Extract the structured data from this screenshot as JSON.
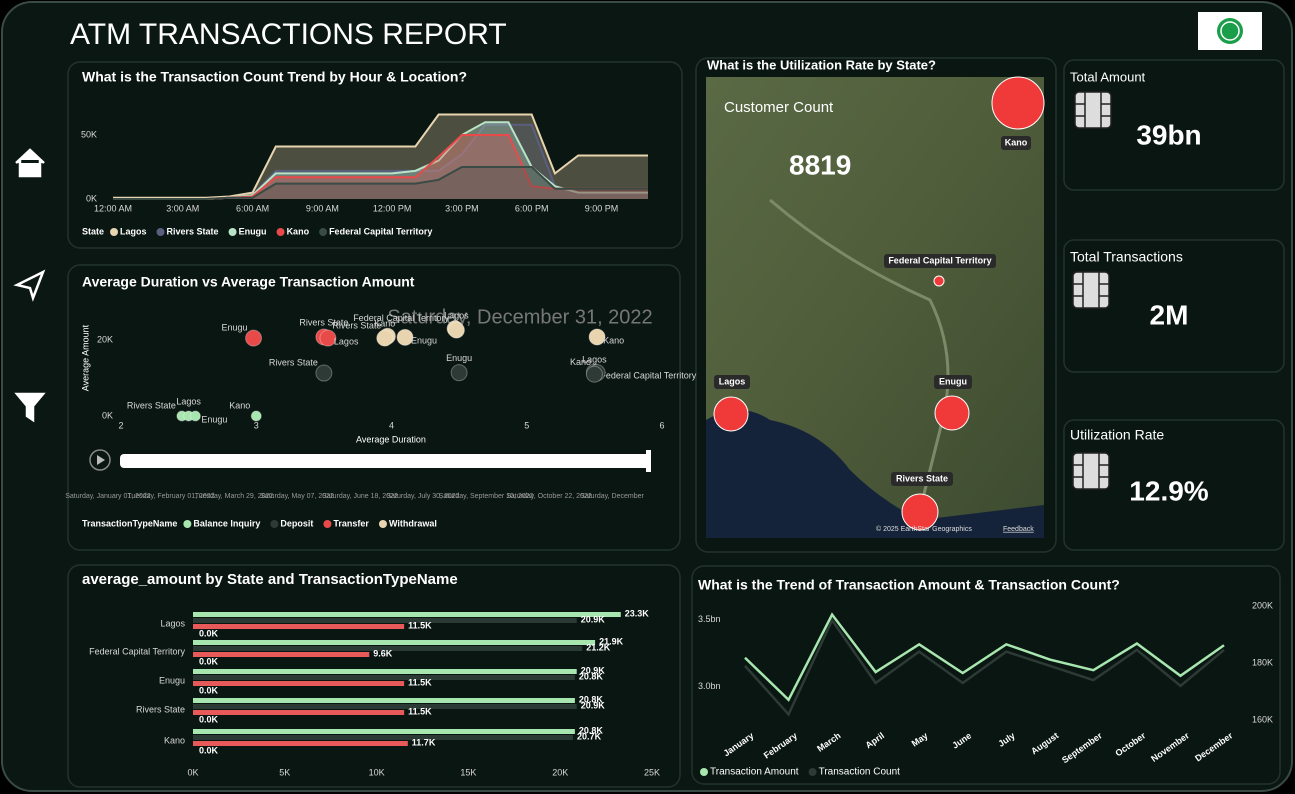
{
  "header": {
    "title": "ATM TRANSACTIONS REPORT"
  },
  "chart_data": [
    {
      "type": "area",
      "title": "What is the Transaction Count Trend by Hour & Location?",
      "categories": [
        "12:00 AM",
        null,
        null,
        "3:00 AM",
        null,
        null,
        "6:00 AM",
        null,
        null,
        "9:00 AM",
        null,
        null,
        "12:00 PM",
        null,
        null,
        "3:00 PM",
        null,
        null,
        "6:00 PM",
        null,
        null,
        "9:00 PM",
        null,
        null
      ],
      "ylim": [
        0,
        70000
      ],
      "yticks": [
        {
          "value": 0,
          "label": "0K"
        },
        {
          "value": 50000,
          "label": "50K"
        }
      ],
      "legend_title": "State",
      "series": [
        {
          "name": "Lagos",
          "color": "#e8d5b0",
          "values": [
            1000,
            1000,
            1000,
            1000,
            1000,
            2000,
            5000,
            41000,
            41000,
            41000,
            41000,
            41000,
            41000,
            41000,
            66000,
            66000,
            66000,
            66000,
            66000,
            20000,
            34000,
            34000,
            34000,
            34000
          ]
        },
        {
          "name": "Rivers State",
          "color": "#5a5f80",
          "values": [
            0,
            0,
            0,
            0,
            0,
            1000,
            3000,
            22000,
            22000,
            22000,
            22000,
            22000,
            22000,
            22000,
            22000,
            35000,
            58000,
            58000,
            58000,
            10000,
            5000,
            5000,
            5000,
            5000
          ]
        },
        {
          "name": "Enugu",
          "color": "#b7e4c7",
          "values": [
            0,
            0,
            0,
            0,
            0,
            1000,
            3000,
            20000,
            20000,
            20000,
            20000,
            20000,
            20000,
            22000,
            30000,
            50000,
            60000,
            60000,
            25000,
            10000,
            5000,
            5000,
            5000,
            5000
          ]
        },
        {
          "name": "Kano",
          "color": "#e84a4a",
          "values": [
            0,
            0,
            0,
            0,
            0,
            1000,
            2000,
            17000,
            17000,
            17000,
            17000,
            17000,
            17000,
            17000,
            33000,
            50000,
            50000,
            50000,
            10000,
            8000,
            8000,
            8000,
            8000,
            8000
          ]
        },
        {
          "name": "Federal Capital Territory",
          "color": "#3a4a44",
          "values": [
            0,
            0,
            0,
            0,
            0,
            1000,
            1000,
            12000,
            12000,
            12000,
            12000,
            12000,
            12000,
            12000,
            15000,
            25000,
            25000,
            25000,
            25000,
            8000,
            8000,
            8000,
            8000,
            8000
          ]
        }
      ]
    },
    {
      "type": "scatter",
      "title": "Average Duration vs Average Transaction Amount",
      "x_label": "Average Duration",
      "y_label": "Average Amount",
      "play_label": "Saturday, December 31, 2022",
      "xlim": [
        2,
        6
      ],
      "xticks": [
        2,
        3,
        4,
        5,
        6
      ],
      "ylim": [
        0,
        28000
      ],
      "yticks": [
        {
          "value": 0,
          "label": "0K"
        },
        {
          "value": 20000,
          "label": "20K"
        }
      ],
      "timeline_labels": [
        "Saturday, January 01, 2022",
        "Tuesday, February 01, 2022",
        "Tuesday, March 29, 2022",
        "Saturday, May 07, 2022",
        "Saturday, June 18, 2022",
        "Saturday, July 30, 2022",
        "Saturday, September 10, 2022",
        "Saturday, October 22, 2022",
        "Saturday, December"
      ],
      "legend_title": "TransactionTypeName",
      "series": [
        {
          "name": "Balance Inquiry",
          "color": "#a8e6b0",
          "x": [
            2.45,
            2.5,
            2.55,
            3.0
          ],
          "values": [
            0,
            0,
            0,
            0
          ],
          "labels": [
            "Rivers State",
            "Lagos",
            "Enugu",
            "Kano"
          ]
        },
        {
          "name": "Deposit",
          "color": "#2e3a36",
          "x": [
            3.5,
            4.5,
            5.5,
            5.52,
            5.5
          ],
          "values": [
            11300,
            11400,
            11500,
            11400,
            11000
          ],
          "labels": [
            "Rivers State",
            "Enugu",
            "Federal Capital Territory",
            "Kano",
            "Lagos"
          ]
        },
        {
          "name": "Transfer",
          "color": "#e84a4a",
          "x": [
            2.98,
            3.5,
            3.53
          ],
          "values": [
            20500,
            20800,
            20500
          ],
          "labels": [
            "Enugu",
            "Rivers State",
            "Lagos"
          ]
        },
        {
          "name": "Withdrawal",
          "color": "#e8d5b0",
          "x": [
            3.97,
            3.95,
            4.1,
            4.47,
            4.48,
            5.52
          ],
          "values": [
            21000,
            20500,
            20700,
            23000,
            22600,
            20800
          ],
          "labels": [
            "Rivers State",
            "Kano",
            "Enugu",
            "Federal Capital Territory",
            "Lagos",
            "Kano"
          ]
        }
      ]
    },
    {
      "type": "hbar",
      "title": "average_amount by State and TransactionTypeName",
      "categories": [
        "Lagos",
        "Federal Capital Territory",
        "Enugu",
        "Rivers State",
        "Kano"
      ],
      "xlim": [
        0,
        25000
      ],
      "xticks": [
        {
          "value": 0,
          "label": "0K"
        },
        {
          "value": 5000,
          "label": "5K"
        },
        {
          "value": 10000,
          "label": "10K"
        },
        {
          "value": 15000,
          "label": "15K"
        },
        {
          "value": 20000,
          "label": "20K"
        },
        {
          "value": 25000,
          "label": "25K"
        }
      ],
      "series": [
        {
          "color": "#a8e6b0",
          "values": [
            23300,
            21900,
            20900,
            20800,
            20800
          ],
          "value_labels": [
            "23.3K",
            "21.9K",
            "20.9K",
            "20.8K",
            "20.8K"
          ]
        },
        {
          "color": "#2b3a35",
          "values": [
            20900,
            21200,
            20800,
            20900,
            20700
          ],
          "value_labels": [
            "20.9K",
            "21.2K",
            "20.8K",
            "20.9K",
            "20.7K"
          ]
        },
        {
          "color": "#e85a5a",
          "values": [
            11500,
            9600,
            11500,
            11500,
            11700
          ],
          "value_labels": [
            "11.5K",
            "9.6K",
            "11.5K",
            "11.5K",
            "11.7K"
          ]
        },
        {
          "color": "#a8e6b0",
          "values": [
            0,
            0,
            0,
            0,
            0
          ],
          "value_labels": [
            "0.0K",
            "0.0K",
            "0.0K",
            "0.0K",
            "0.0K"
          ]
        }
      ]
    },
    {
      "type": "line",
      "title": "What is the Trend of Transaction Amount & Transaction Count?",
      "categories": [
        "January",
        "February",
        "March",
        "April",
        "May",
        "June",
        "July",
        "August",
        "September",
        "October",
        "November",
        "December"
      ],
      "ylim": [
        2600000000,
        3600000000
      ],
      "yticks": [
        {
          "value": 3000000000,
          "label": "3.0bn"
        },
        {
          "value": 3500000000,
          "label": "3.5bn"
        }
      ],
      "y2lim": [
        153000,
        200000
      ],
      "y2ticks": [
        {
          "value": 160000,
          "label": "160K"
        },
        {
          "value": 180000,
          "label": "180K"
        },
        {
          "value": 200000,
          "label": "200K"
        }
      ],
      "series": [
        {
          "name": "Transaction Count",
          "color": "#2e3a36",
          "axis": "y2",
          "values": [
            179000,
            162000,
            195000,
            173000,
            184000,
            173000,
            184000,
            179000,
            174000,
            184600,
            172000,
            184600
          ]
        },
        {
          "name": "Transaction Amount",
          "color": "#a8e6b0",
          "values": [
            3214000000,
            2900000000,
            3536000000,
            3107000000,
            3314000000,
            3100000000,
            3314000000,
            3200000000,
            3121000000,
            3320000000,
            3079000000,
            3307000000
          ]
        }
      ]
    }
  ],
  "map": {
    "title": "What is the Utilization Rate by State?",
    "customer_count_label": "Customer Count",
    "customer_count": "8819",
    "states": [
      "Kano",
      "Federal Capital Territory",
      "Lagos",
      "Enugu",
      "Rivers State"
    ],
    "attribution": "© 2025 EarthStar Geographics",
    "feedback": "Feedback"
  },
  "kpis": [
    {
      "label": "Total Amount",
      "value": "39bn"
    },
    {
      "label": "Total Transactions",
      "value": "2M"
    },
    {
      "label": "Utilization Rate",
      "value": "12.9%"
    }
  ]
}
